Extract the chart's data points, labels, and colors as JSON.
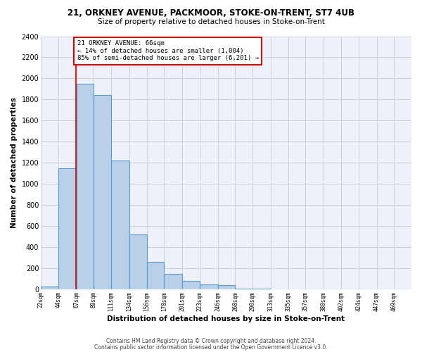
{
  "title": "21, ORKNEY AVENUE, PACKMOOR, STOKE-ON-TRENT, ST7 4UB",
  "subtitle": "Size of property relative to detached houses in Stoke-on-Trent",
  "xlabel": "Distribution of detached houses by size in Stoke-on-Trent",
  "ylabel": "Number of detached properties",
  "bin_labels": [
    "22sqm",
    "44sqm",
    "67sqm",
    "89sqm",
    "111sqm",
    "134sqm",
    "156sqm",
    "178sqm",
    "201sqm",
    "223sqm",
    "246sqm",
    "268sqm",
    "290sqm",
    "313sqm",
    "335sqm",
    "357sqm",
    "380sqm",
    "402sqm",
    "424sqm",
    "447sqm",
    "469sqm"
  ],
  "bin_edges": [
    22,
    44,
    67,
    89,
    111,
    134,
    156,
    178,
    201,
    223,
    246,
    268,
    290,
    313,
    335,
    357,
    380,
    402,
    424,
    447,
    469
  ],
  "counts": [
    30,
    1150,
    1950,
    1840,
    1220,
    520,
    265,
    150,
    80,
    50,
    40,
    10,
    10,
    5,
    2,
    2,
    1,
    1,
    0,
    0,
    0
  ],
  "bar_color": "#b8d0e8",
  "bar_edge_color": "#5b9bd5",
  "property_size": 66,
  "property_line_color": "#cc0000",
  "annotation_line1": "21 ORKNEY AVENUE: 66sqm",
  "annotation_line2": "← 14% of detached houses are smaller (1,004)",
  "annotation_line3": "85% of semi-detached houses are larger (6,201) →",
  "annotation_box_color": "#ffffff",
  "annotation_box_edge_color": "#cc0000",
  "ylim": [
    0,
    2400
  ],
  "yticks": [
    0,
    200,
    400,
    600,
    800,
    1000,
    1200,
    1400,
    1600,
    1800,
    2000,
    2200,
    2400
  ],
  "footer_line1": "Contains HM Land Registry data © Crown copyright and database right 2024.",
  "footer_line2": "Contains public sector information licensed under the Open Government Licence v3.0.",
  "bg_color": "#ffffff",
  "plot_bg_color": "#eef2f8",
  "grid_color": "#c8d0dc"
}
